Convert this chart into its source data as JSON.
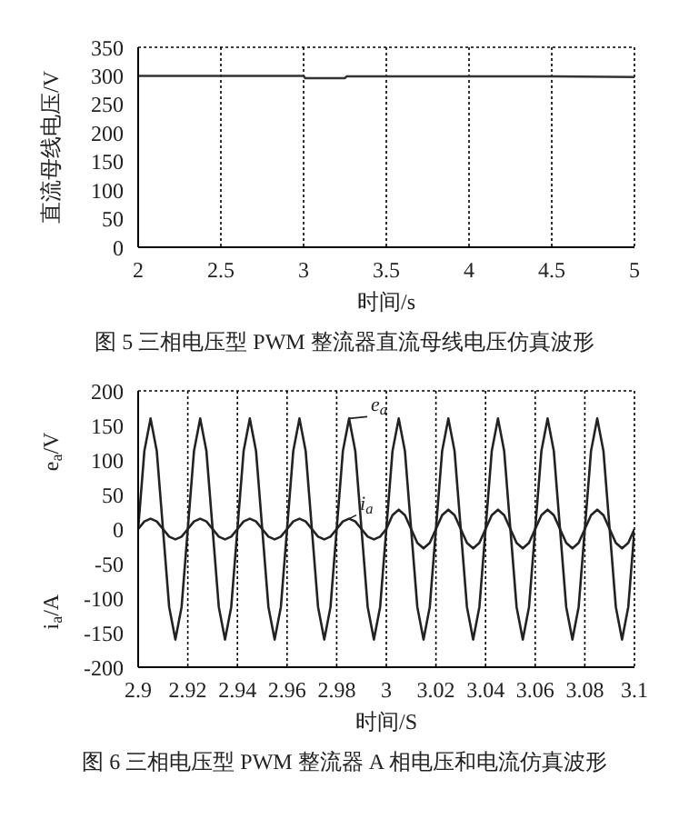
{
  "chart_data": [
    {
      "type": "line",
      "xlabel": "时间/s",
      "ylabel": "直流母线电压/V",
      "annotations": [
        "图 5 三相电压型 PWM 整流器直流母线电压仿真波形"
      ],
      "x": [
        2,
        3,
        3.01,
        3.25,
        3.26,
        4.5,
        5
      ],
      "xlim": [
        2,
        5
      ],
      "xticks": [
        2,
        2.5,
        3,
        3.5,
        4,
        4.5,
        5
      ],
      "ylim": [
        0,
        350
      ],
      "yticks": [
        0,
        50,
        100,
        150,
        200,
        250,
        300,
        350
      ],
      "grid": true,
      "series": [
        {
          "color": "#333333",
          "values": [
            300,
            300,
            296,
            296,
            299,
            299,
            298
          ]
        }
      ]
    },
    {
      "type": "line",
      "xlabel": "时间/S",
      "ylabel": "e$_{a}$/V",
      "y2label": "i$_{a}$/A",
      "annotations": [
        "图 6 三相电压型 PWM 整流器 A 相电压和电流仿真波形"
      ],
      "x": [
        2.9,
        2.9025,
        2.905,
        2.9075,
        2.91,
        2.9125,
        2.915,
        2.9175,
        2.92,
        2.9225,
        2.925,
        2.9275,
        2.93,
        2.9325,
        2.935,
        2.9375,
        2.94,
        2.9425,
        2.945,
        2.9475,
        2.95,
        2.9525,
        2.955,
        2.9575,
        2.96,
        2.9625,
        2.965,
        2.9675,
        2.97,
        2.9725,
        2.975,
        2.9775,
        2.98,
        2.9825,
        2.985,
        2.9875,
        2.99,
        2.9925,
        2.995,
        2.9975,
        3,
        3.0025,
        3.005,
        3.0075,
        3.01,
        3.0125,
        3.015,
        3.0175,
        3.02,
        3.0225,
        3.025,
        3.0275,
        3.03,
        3.0325,
        3.035,
        3.0375,
        3.04,
        3.0425,
        3.045,
        3.0475,
        3.05,
        3.0525,
        3.055,
        3.0575,
        3.06,
        3.0625,
        3.065,
        3.0675,
        3.07,
        3.0725,
        3.075,
        3.0775,
        3.08,
        3.0825,
        3.085,
        3.0875,
        3.09,
        3.0925,
        3.095,
        3.0975,
        3.1
      ],
      "xlim": [
        2.9,
        3.1
      ],
      "xticks": [
        2.9,
        2.92,
        2.94,
        2.96,
        2.98,
        3,
        3.02,
        3.04,
        3.06,
        3.08,
        3.1
      ],
      "ylim": [
        -200,
        200
      ],
      "yticks": [
        -200,
        -150,
        -100,
        -50,
        0,
        50,
        100,
        150,
        200
      ],
      "grid": true,
      "legend": "top",
      "series": [
        {
          "name": "e$_{a}$",
          "color": "#222222",
          "values": [
            0,
            113,
            160,
            113,
            0,
            -113,
            -160,
            -113,
            0,
            113,
            160,
            113,
            0,
            -113,
            -160,
            -113,
            0,
            113,
            160,
            113,
            0,
            -113,
            -160,
            -113,
            0,
            113,
            160,
            113,
            0,
            -113,
            -160,
            -113,
            0,
            113,
            160,
            113,
            0,
            -113,
            -160,
            -113,
            0,
            113,
            160,
            113,
            0,
            -113,
            -160,
            -113,
            0,
            113,
            160,
            113,
            0,
            -113,
            -160,
            -113,
            0,
            113,
            160,
            113,
            0,
            -113,
            -160,
            -113,
            0,
            113,
            160,
            113,
            0,
            -113,
            -160,
            -113,
            0,
            113,
            160,
            113,
            0,
            -113,
            -160,
            -113,
            0
          ]
        },
        {
          "name": "i$_{a}$",
          "color": "#222222",
          "values": [
            0,
            11,
            15,
            11,
            0,
            -11,
            -15,
            -11,
            0,
            11,
            15,
            11,
            0,
            -11,
            -15,
            -11,
            0,
            11,
            15,
            11,
            0,
            -11,
            -15,
            -11,
            0,
            11,
            15,
            11,
            0,
            -11,
            -15,
            -11,
            0,
            11,
            15,
            11,
            0,
            -11,
            -15,
            -11,
            0,
            20,
            28,
            20,
            0,
            -20,
            -28,
            -20,
            0,
            20,
            28,
            20,
            0,
            -20,
            -28,
            -20,
            0,
            20,
            28,
            20,
            0,
            -20,
            -28,
            -20,
            0,
            20,
            28,
            20,
            0,
            -20,
            -28,
            -20,
            0,
            20,
            28,
            20,
            0,
            -20,
            -28,
            -20,
            0
          ]
        }
      ]
    }
  ]
}
